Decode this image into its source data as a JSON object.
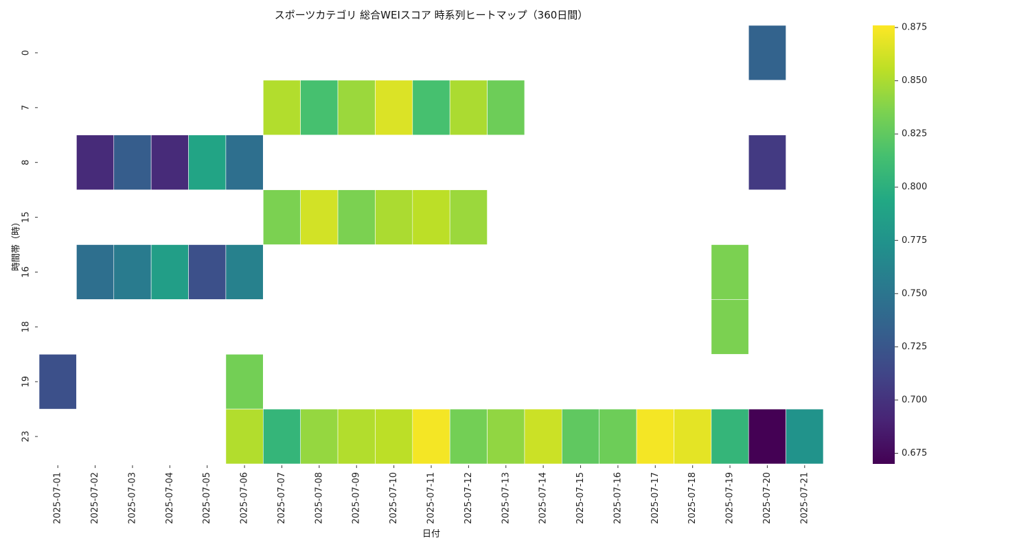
{
  "chart_data": {
    "type": "heatmap",
    "title": "スポーツカテゴリ 総合WEIスコア 時系列ヒートマップ（360日間）",
    "xlabel": "日付",
    "ylabel": "時間帯（時）",
    "x_categories": [
      "2025-07-01",
      "2025-07-02",
      "2025-07-03",
      "2025-07-04",
      "2025-07-05",
      "2025-07-06",
      "2025-07-07",
      "2025-07-08",
      "2025-07-09",
      "2025-07-10",
      "2025-07-11",
      "2025-07-12",
      "2025-07-13",
      "2025-07-14",
      "2025-07-15",
      "2025-07-16",
      "2025-07-17",
      "2025-07-18",
      "2025-07-19",
      "2025-07-20",
      "2025-07-21"
    ],
    "y_categories": [
      "0",
      "7",
      "8",
      "15",
      "16",
      "18",
      "19",
      "23"
    ],
    "values": [
      [
        null,
        null,
        null,
        null,
        null,
        null,
        null,
        null,
        null,
        null,
        null,
        null,
        null,
        null,
        null,
        null,
        null,
        null,
        null,
        0.735,
        null
      ],
      [
        null,
        null,
        null,
        null,
        null,
        null,
        0.852,
        0.815,
        0.845,
        0.865,
        0.815,
        0.85,
        0.83,
        null,
        null,
        null,
        null,
        null,
        null,
        null,
        null
      ],
      [
        null,
        0.695,
        0.73,
        0.695,
        0.79,
        0.745,
        null,
        null,
        null,
        null,
        null,
        null,
        null,
        null,
        null,
        null,
        null,
        null,
        null,
        0.705,
        null
      ],
      [
        null,
        null,
        null,
        null,
        null,
        null,
        0.835,
        0.862,
        0.835,
        0.85,
        0.855,
        0.845,
        null,
        null,
        null,
        null,
        null,
        null,
        null,
        null,
        null
      ],
      [
        null,
        0.745,
        0.755,
        0.785,
        0.72,
        0.76,
        null,
        null,
        null,
        null,
        null,
        null,
        null,
        null,
        null,
        null,
        null,
        null,
        0.835,
        null,
        null
      ],
      [
        null,
        null,
        null,
        null,
        null,
        null,
        null,
        null,
        null,
        null,
        null,
        null,
        null,
        null,
        null,
        null,
        null,
        null,
        0.835,
        null,
        null
      ],
      [
        0.72,
        null,
        null,
        null,
        null,
        0.832,
        null,
        null,
        null,
        null,
        null,
        null,
        null,
        null,
        null,
        null,
        null,
        null,
        null,
        null,
        null
      ],
      [
        null,
        null,
        null,
        null,
        null,
        0.852,
        0.805,
        0.843,
        0.852,
        0.855,
        0.873,
        0.832,
        0.842,
        0.86,
        0.825,
        0.83,
        0.873,
        0.868,
        0.805,
        0.67,
        0.775
      ]
    ],
    "colorscale": "viridis",
    "zlim": [
      0.67,
      0.876
    ],
    "colorbar_ticks": [
      "0.675",
      "0.700",
      "0.725",
      "0.750",
      "0.775",
      "0.800",
      "0.825",
      "0.850",
      "0.875"
    ],
    "grid": false,
    "colorbar_position": "right"
  }
}
